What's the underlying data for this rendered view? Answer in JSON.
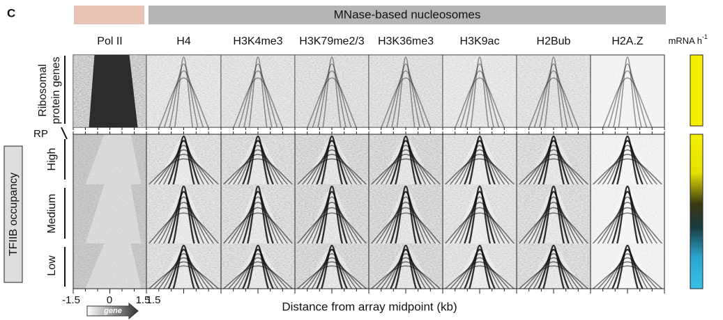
{
  "panel_label": "C",
  "header": {
    "group_label": "MNase-based nucleosomes"
  },
  "columns": [
    "Pol II",
    "H4",
    "H3K4me3",
    "H3K79me2/3",
    "H3K36me3",
    "H3K9ac",
    "H2Bub",
    "H2A.Z"
  ],
  "side_label": {
    "text": "mRNA h",
    "superscript": "-1"
  },
  "rows": {
    "top": [
      "Ribosomal",
      "protein genes"
    ],
    "rp": "RP",
    "group": "TFIIB occupancy",
    "levels": [
      "High",
      "Medium",
      "Low"
    ]
  },
  "x_axis": {
    "ticks": [
      "-1.5",
      "0",
      "1.5",
      "1.5"
    ],
    "gene": "gene",
    "title": "Distance from array midpoint (kb)"
  }
}
